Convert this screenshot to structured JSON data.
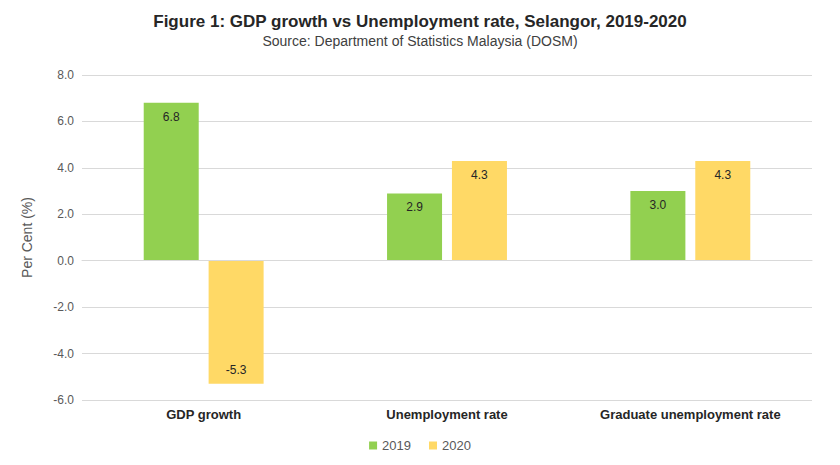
{
  "chart_data": {
    "type": "bar",
    "title": "Figure 1: GDP growth vs Unemployment rate, Selangor, 2019-2020",
    "subtitle": "Source: Department of Statistics Malaysia (DOSM)",
    "y_label": "Per Cent (%)",
    "categories": [
      "GDP growth",
      "Unemployment rate",
      "Graduate unemployment rate"
    ],
    "series": [
      {
        "name": "2019",
        "color": "#92D050",
        "values": [
          6.8,
          2.9,
          3.0
        ],
        "value_labels": [
          "6.8",
          "2.9",
          "3.0"
        ]
      },
      {
        "name": "2020",
        "color": "#FFD966",
        "values": [
          -5.3,
          4.3,
          4.3
        ],
        "value_labels": [
          "-5.3",
          "4.3",
          "4.3"
        ]
      }
    ],
    "ylim": [
      -6,
      8
    ],
    "yticks": [
      {
        "value": -6,
        "label": "-6.0"
      },
      {
        "value": -4,
        "label": "-4.0"
      },
      {
        "value": -2,
        "label": "-2.0"
      },
      {
        "value": 0,
        "label": "0.0"
      },
      {
        "value": 2,
        "label": "2.0"
      },
      {
        "value": 4,
        "label": "4.0"
      },
      {
        "value": 6,
        "label": "6.0"
      },
      {
        "value": 8,
        "label": "8.0"
      }
    ],
    "grid": true,
    "legend": "bottom",
    "data_labels": true
  }
}
